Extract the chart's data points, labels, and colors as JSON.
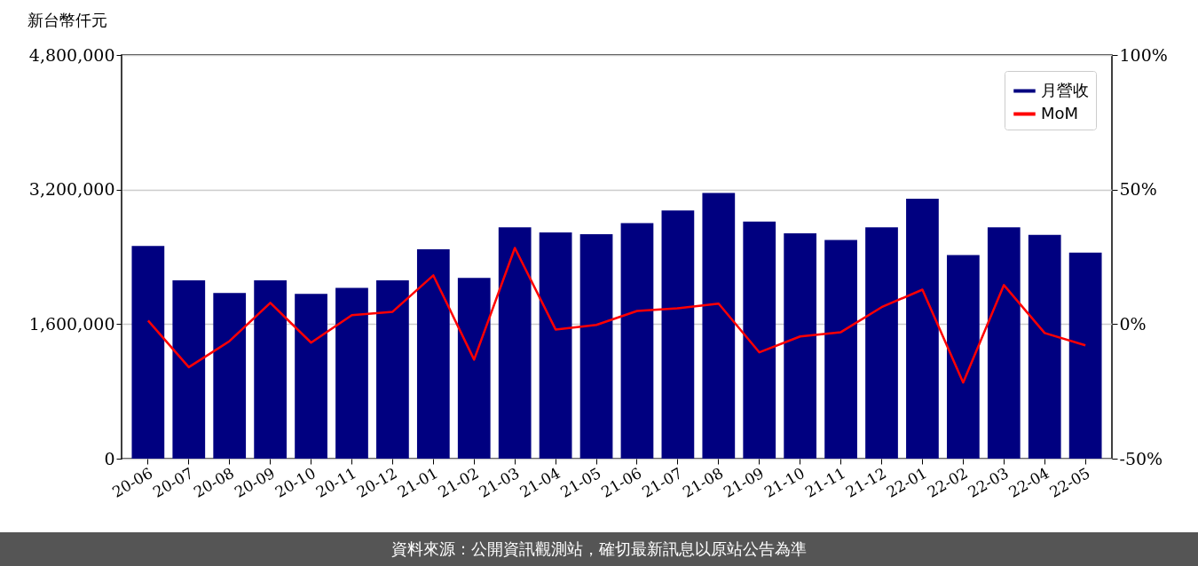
{
  "chart_data": {
    "type": "bar",
    "ylabel": "新台幣仟元",
    "categories": [
      "20-06",
      "20-07",
      "20-08",
      "20-09",
      "20-10",
      "20-11",
      "20-12",
      "21-01",
      "21-02",
      "21-03",
      "21-04",
      "21-05",
      "21-06",
      "21-07",
      "21-08",
      "21-09",
      "21-10",
      "21-11",
      "21-12",
      "22-01",
      "22-02",
      "22-03",
      "22-04",
      "22-05"
    ],
    "series": [
      {
        "name": "月營收",
        "color": "#000080",
        "values": [
          2530000,
          2120000,
          1970000,
          2120000,
          1960000,
          2030000,
          2120000,
          2490000,
          2150000,
          2750000,
          2690000,
          2670000,
          2800000,
          2950000,
          3160000,
          2820000,
          2680000,
          2600000,
          2750000,
          3090000,
          2420000,
          2750000,
          2660000,
          2450000
        ]
      },
      {
        "name": "MoM",
        "type": "line",
        "axis": "y2",
        "color": "#ff0000",
        "values": [
          1.3,
          -16,
          -6.3,
          7.9,
          -6.9,
          3.3,
          4.6,
          18.1,
          -13.2,
          28.3,
          -2.0,
          -0.3,
          4.9,
          5.9,
          7.6,
          -10.5,
          -4.6,
          -3.0,
          6.3,
          12.8,
          -21.7,
          14.5,
          -3.3,
          -7.9
        ]
      }
    ],
    "ylim": [
      0,
      4800000
    ],
    "yticks": [
      0,
      {
        "value": 1600000,
        "label": "1,600,000"
      },
      {
        "value": 3200000,
        "label": "3,200,000"
      },
      {
        "value": 4800000,
        "label": "4,800,000"
      }
    ],
    "y2lim": [
      -50,
      100
    ],
    "y2ticks": [
      {
        "value": -50,
        "label": "-50%"
      },
      {
        "value": 0,
        "label": "0%"
      },
      {
        "value": 50,
        "label": "50%"
      },
      {
        "value": 100,
        "label": "100%"
      }
    ],
    "grid": "y",
    "legend": "top right",
    "annotations": [
      "資料來源：公開資訊觀測站，確切最新訊息以原站公告為準"
    ]
  }
}
